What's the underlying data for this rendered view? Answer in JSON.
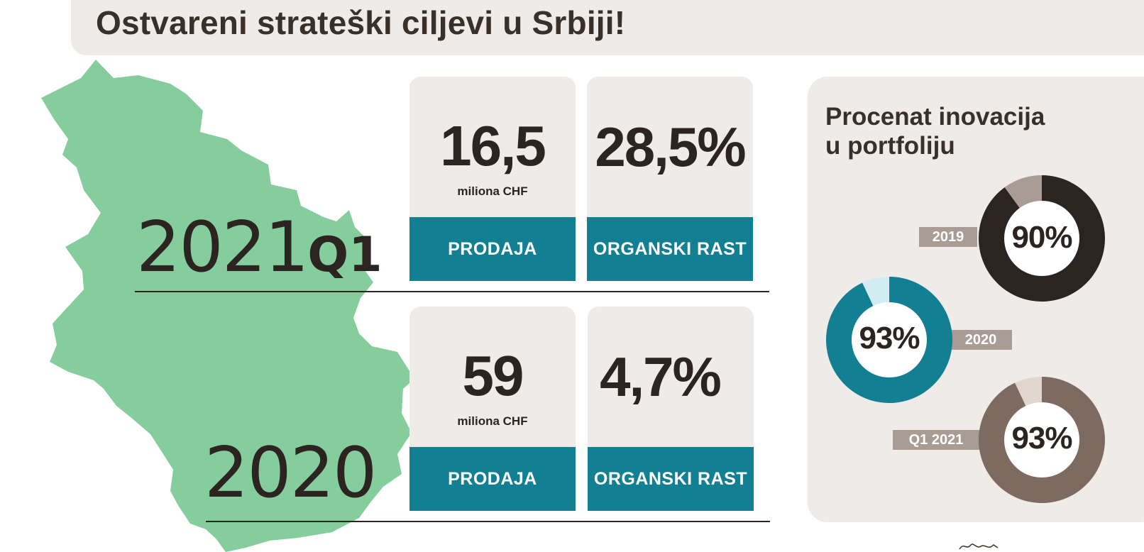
{
  "title": "Ostvareni strateški ciljevi u Srbiji!",
  "colors": {
    "map_green": "#86cd9d",
    "card_bg": "#efebe8",
    "teal": "#127f93",
    "dark": "#2b2420",
    "taupe": "#7d6b62",
    "tag_gray": "#a89c95"
  },
  "periods": [
    {
      "year": "2021",
      "suffix": "Q1",
      "cards": [
        {
          "value": "16,5",
          "unit": "miliona CHF",
          "label": "PRODAJA"
        },
        {
          "value": "28,5%",
          "unit": "",
          "label": "ORGANSKI RAST"
        }
      ]
    },
    {
      "year": "2020",
      "suffix": "",
      "cards": [
        {
          "value": "59",
          "unit": "miliona CHF",
          "label": "PRODAJA"
        },
        {
          "value": "4,7%",
          "unit": "",
          "label": "ORGANSKI RAST"
        }
      ]
    }
  ],
  "innovation": {
    "title_line1": "Procenat inovacija",
    "title_line2": "u portfoliju",
    "items": [
      {
        "label": "2019",
        "percent_text": "90%",
        "value": 90,
        "color": "#2b2420",
        "rest_color": "#a89c95"
      },
      {
        "label": "2020",
        "percent_text": "93%",
        "value": 93,
        "color": "#127f93",
        "rest_color": "#d2edf1"
      },
      {
        "label": "Q1 2021",
        "percent_text": "93%",
        "value": 93,
        "color": "#7d6b62",
        "rest_color": "#e2d6cf"
      }
    ]
  }
}
